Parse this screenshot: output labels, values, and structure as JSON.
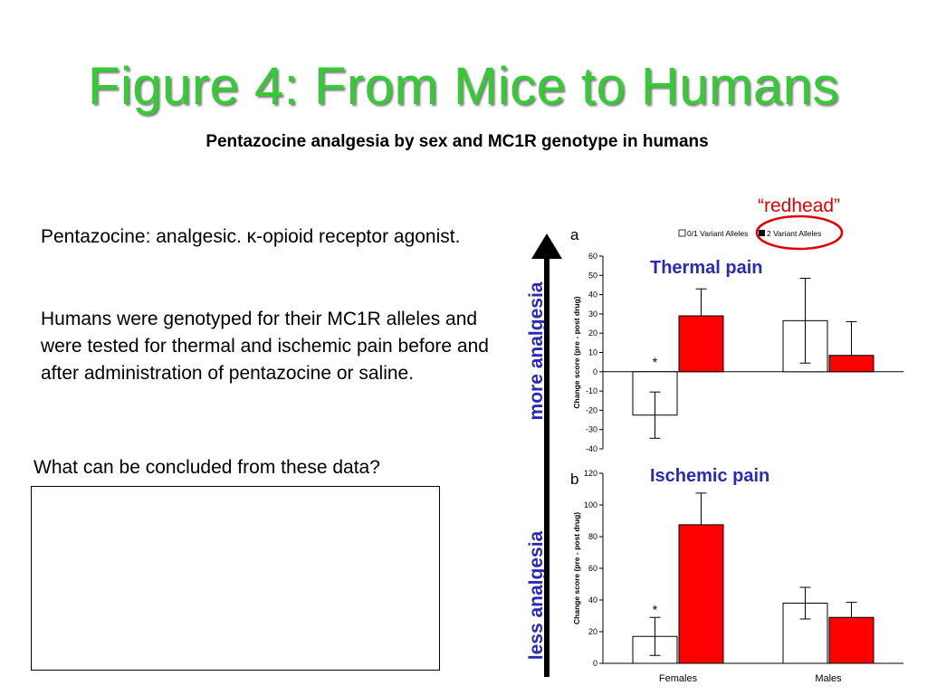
{
  "slide": {
    "title": "Figure 4: From Mice to Humans",
    "subtitle": "Pentazocine analgesia by sex and MC1R genotype in humans",
    "paragraph1": "Pentazocine: analgesic. κ-opioid receptor agonist.",
    "paragraph2": "Humans were genotyped for their MC1R alleles and were tested for thermal and ischemic pain before and after administration of pentazocine or saline.",
    "question": "What can be concluded from these data?",
    "arrow_top_label": "more analgesia",
    "arrow_bottom_label": "less analgesia",
    "callout": "“redhead”",
    "colors": {
      "title": "#33cc33",
      "labels": "#2a2ab8",
      "callout": "#e00000",
      "variant_bar": "#ff0000"
    }
  },
  "legend": {
    "series1": "0/1 Variant Alleles",
    "series2": "2 Variant Alleles"
  },
  "chart_data": [
    {
      "type": "bar",
      "panel": "a",
      "title": "Thermal pain",
      "ylabel": "Change score (pre - post drug)",
      "ylim": [
        -40,
        60
      ],
      "yticks": [
        -40,
        -30,
        -20,
        -10,
        0,
        10,
        20,
        30,
        40,
        50,
        60
      ],
      "categories": [
        "Females",
        "Males"
      ],
      "series": [
        {
          "name": "0/1 Variant Alleles",
          "color": "#ffffff",
          "values": [
            -22.5,
            26.5
          ],
          "err": [
            12,
            22
          ]
        },
        {
          "name": "2 Variant Alleles",
          "color": "#ff0000",
          "values": [
            29,
            8.5
          ],
          "err": [
            14,
            17.5
          ]
        }
      ],
      "annotations": [
        {
          "text": "*",
          "category": "Females",
          "series": 0
        }
      ]
    },
    {
      "type": "bar",
      "panel": "b",
      "title": "Ischemic pain",
      "ylabel": "Change score (pre - post drug)",
      "ylim": [
        0,
        120
      ],
      "yticks": [
        0,
        20,
        40,
        60,
        80,
        100,
        120
      ],
      "categories": [
        "Females",
        "Males"
      ],
      "series": [
        {
          "name": "0/1 Variant Alleles",
          "color": "#ffffff",
          "values": [
            17,
            38
          ],
          "err": [
            12,
            10
          ]
        },
        {
          "name": "2 Variant Alleles",
          "color": "#ff0000",
          "values": [
            87.5,
            29
          ],
          "err": [
            20,
            9.5
          ]
        }
      ],
      "annotations": [
        {
          "text": "*",
          "category": "Females",
          "series": 0
        }
      ]
    }
  ]
}
